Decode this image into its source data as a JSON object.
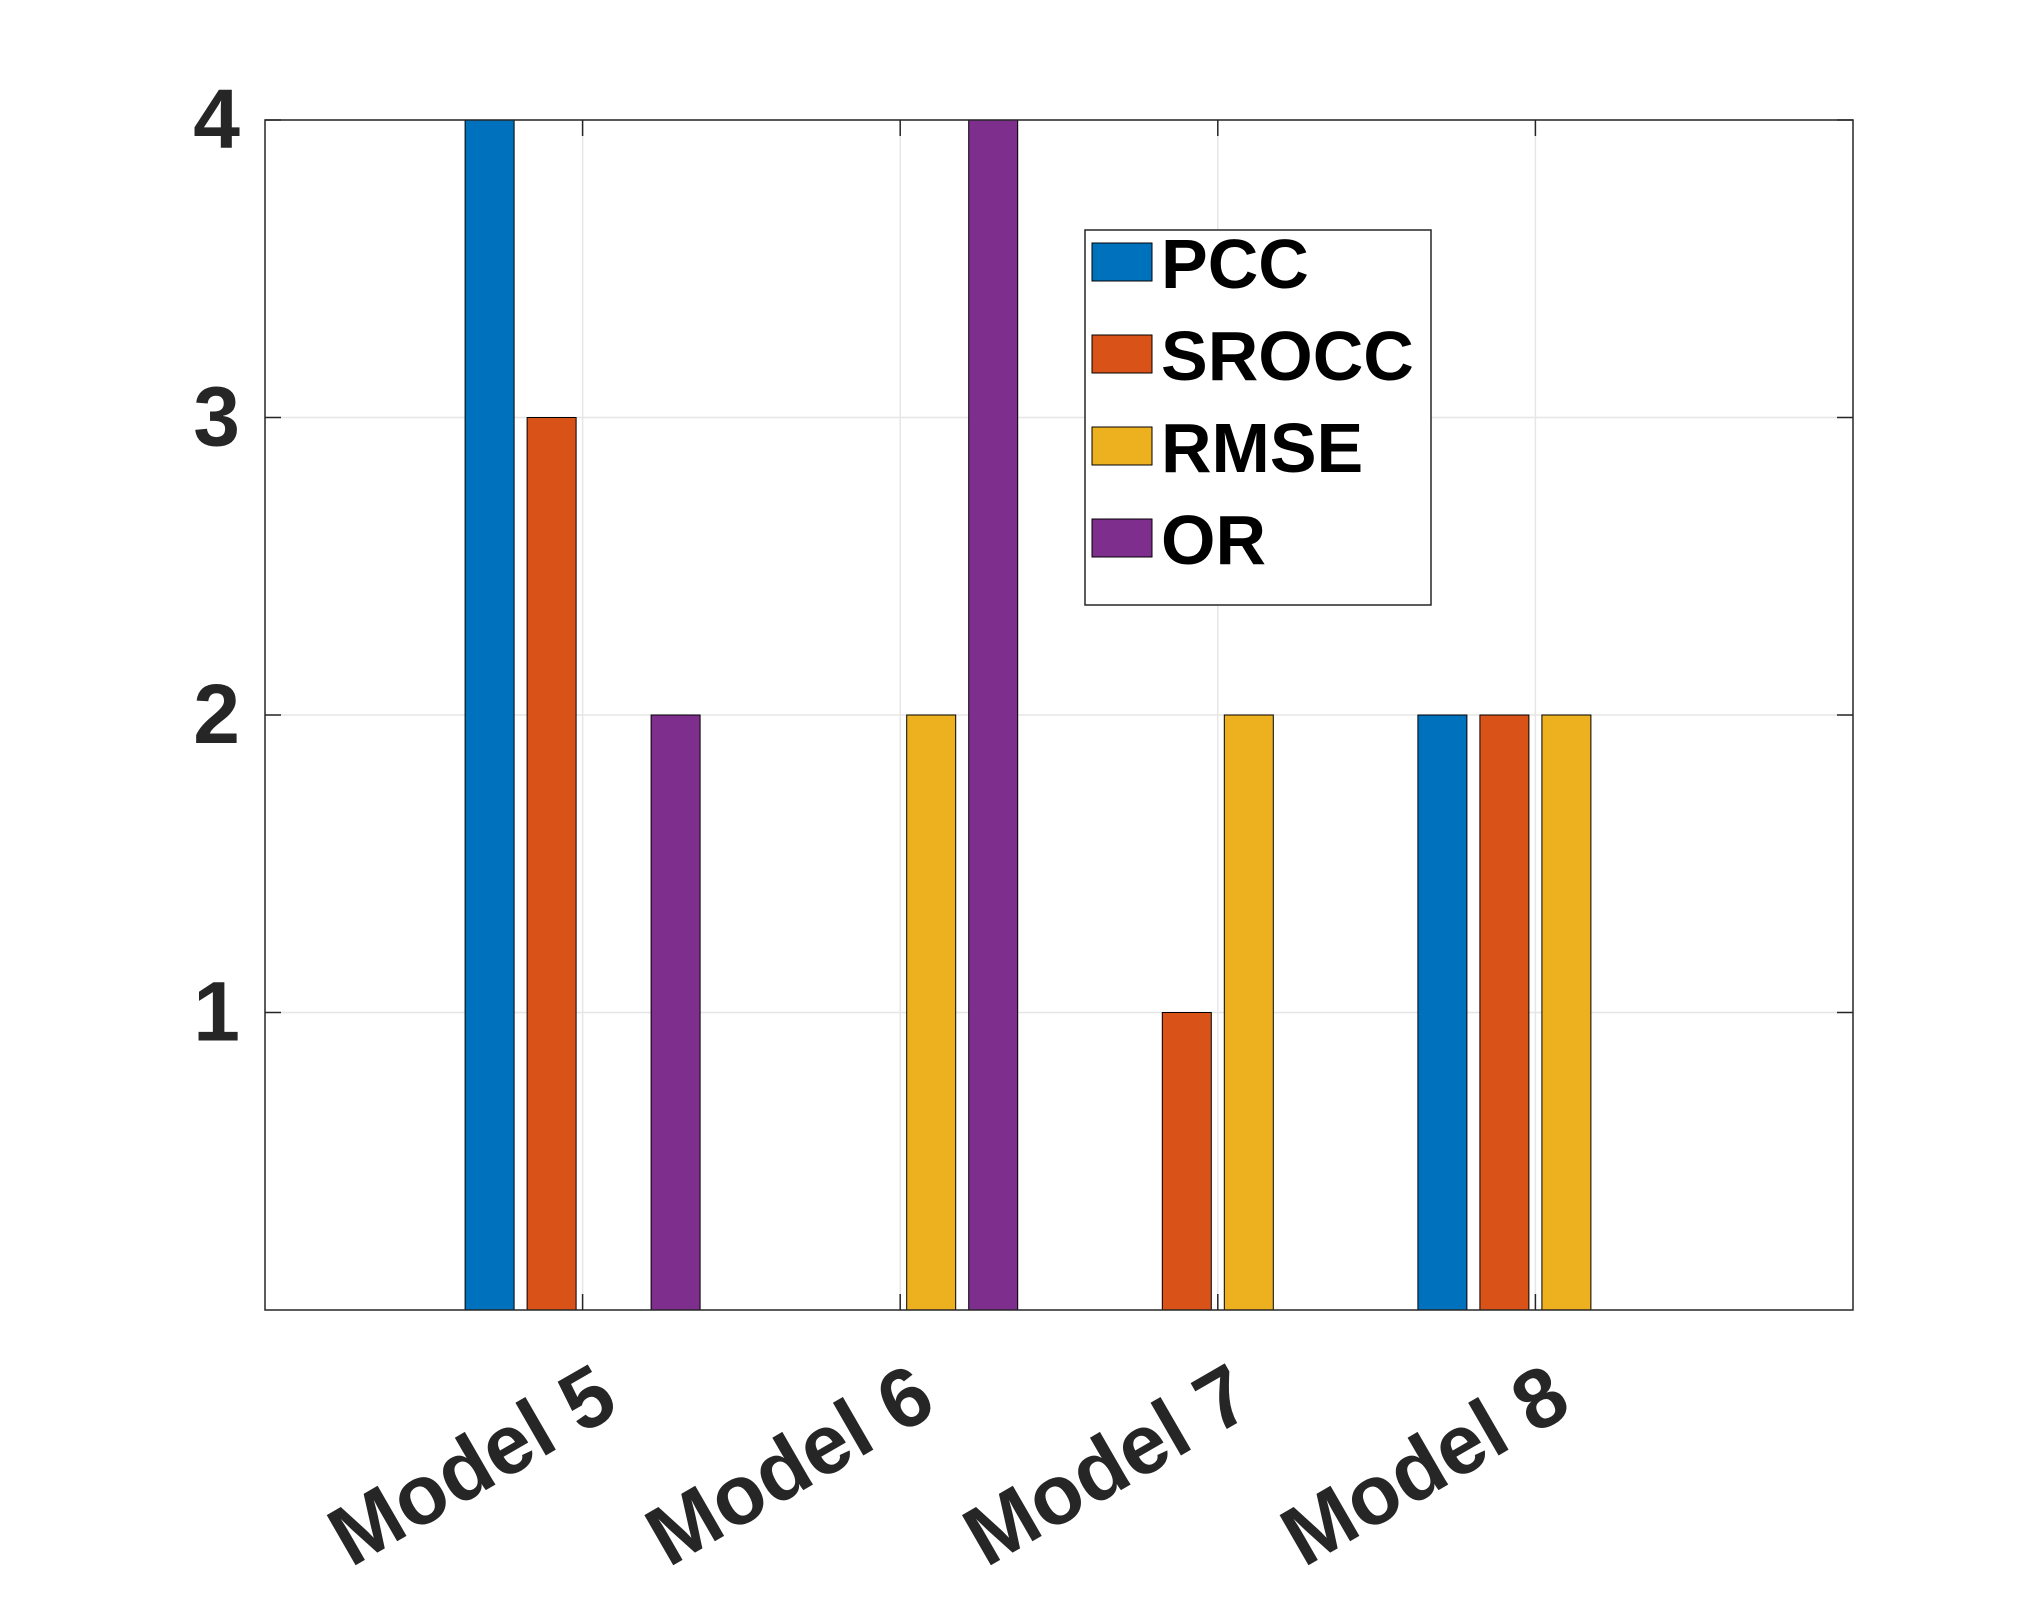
{
  "chart_data": {
    "type": "bar",
    "title": "",
    "xlabel": "",
    "ylabel": "",
    "categories": [
      "Model 5",
      "Model 6",
      "Model 7",
      "Model 8"
    ],
    "series": [
      {
        "name": "PCC",
        "color": "#0072BD",
        "values": [
          4,
          0,
          0,
          2
        ]
      },
      {
        "name": "SROCC",
        "color": "#D95319",
        "values": [
          3,
          0,
          1,
          2
        ]
      },
      {
        "name": "RMSE",
        "color": "#EDB120",
        "values": [
          0,
          2,
          2,
          2
        ]
      },
      {
        "name": "OR",
        "color": "#7E2F8E",
        "values": [
          2,
          4,
          0,
          0
        ]
      }
    ],
    "ylim": [
      0,
      4
    ],
    "yticks": [
      "1",
      "2",
      "3",
      "4"
    ],
    "grid": true,
    "legend_position": "top-right"
  }
}
